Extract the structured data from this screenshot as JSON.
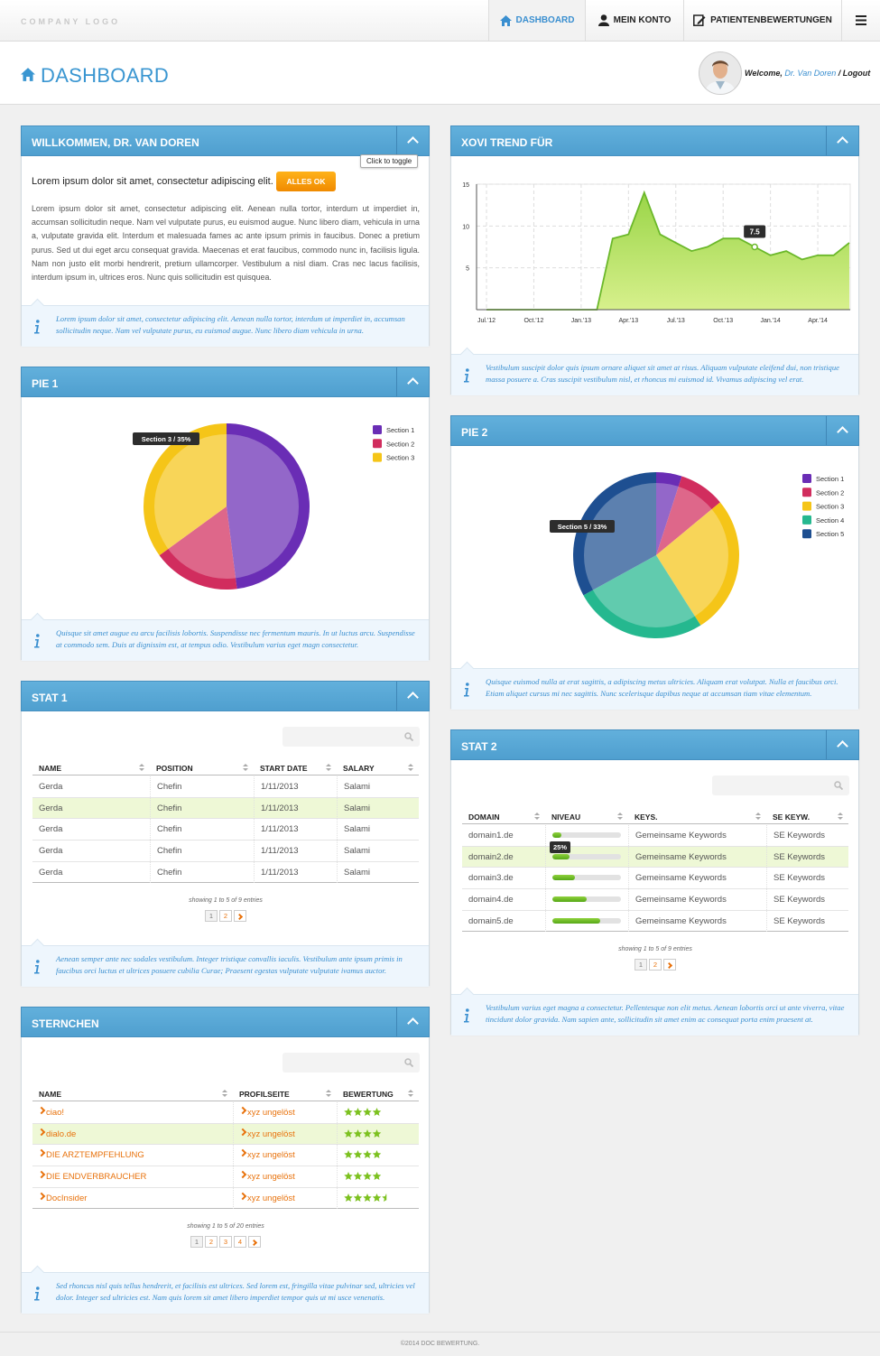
{
  "header": {
    "logo": "COMPANY LOGO",
    "nav": [
      "DASHBOARD",
      "MEIN KONTO",
      "PATIENTENBEWERTUNGEN"
    ]
  },
  "page": {
    "title": "DASHBOARD",
    "welcome": "Welcome,",
    "user": "Dr. Van Doren",
    "separator": "/",
    "logout": "Logout"
  },
  "welcome": {
    "title": "WILLKOMMEN, DR. VAN DOREN",
    "toggle_tip": "Click to toggle",
    "lead": "Lorem ipsum dolor sit amet, consectetur adipiscing elit.",
    "button": "ALLES OK",
    "body": "Lorem ipsum dolor sit amet, consectetur adipiscing elit. Aenean nulla tortor, interdum ut imperdiet in, accumsan sollicitudin neque. Nam vel vulputate purus, eu euismod augue. Nunc libero diam, vehicula in urna a, vulputate gravida elit. Interdum et malesuada fames ac ante ipsum primis in faucibus. Donec a pretium purus. Sed ut dui eget arcu consequat gravida. Maecenas et erat faucibus, commodo nunc in, facilisis ligula. Nam non justo elit morbi hendrerit, pretium ullamcorper. Vestibulum a nisl diam. Cras nec lacus facilisis, interdum ipsum in, ultrices eros. Nunc quis sollicitudin est quisquea.",
    "info": "Lorem ipsum dolor sit amet, consectetur adipiscing elit. Aenean nulla tortor, interdum ut imperdiet in, accumsan sollicitudin neque. Nam vel vulputate purus, eu euismod augue. Nunc libero diam vehicula in urna."
  },
  "xovi": {
    "title": "XOVI TREND FÜR",
    "chart": {
      "type": "area",
      "categories": [
        "Jul.'12",
        null,
        null,
        "Oct.'12",
        null,
        null,
        "Jan.'13",
        null,
        null,
        "Apr.'13",
        null,
        null,
        "Jul.'13",
        null,
        null,
        "Oct.'13",
        null,
        null,
        "Jan.'14",
        null,
        null,
        "Apr.'14",
        null,
        null
      ],
      "values": [
        0,
        0,
        0,
        0,
        0,
        0,
        0,
        0,
        8.5,
        9,
        14,
        9,
        8,
        7,
        7.5,
        8.5,
        8.5,
        7.5,
        6.5,
        7,
        6,
        6.5,
        6.5,
        8
      ],
      "ylim": [
        0,
        15
      ],
      "yticks": [
        5,
        10,
        15
      ],
      "grid": true,
      "color": "#6bb82a"
    },
    "info": "Vestibulum suscipit dolor quis ipsum ornare aliquet sit amet at risus. Aliquam vulputate eleifend dui, non tristique massa posuere a. Cras suscipit vestibulum nisl, et rhoncus mi euismod id. Vivamus adipiscing vel erat."
  },
  "pie1": {
    "title": "PIE 1",
    "chart": {
      "type": "pie",
      "categories": [
        "Section 1",
        "Section 2",
        "Section 3"
      ],
      "values": [
        48,
        17,
        35
      ],
      "colors": [
        "#6a2db5",
        "#d12d5e",
        "#f5c518"
      ],
      "tooltip": "Section 3 / 35%"
    },
    "info": "Quisque sit amet augue eu arcu facilisis lobortis. Suspendisse nec fermentum mauris. In ut luctus arcu. Suspendisse at commodo sem. Duis at dignissim est, at tempus odio. Vestibulum varius eget magn consectetur."
  },
  "pie2": {
    "title": "PIE 2",
    "chart": {
      "type": "pie",
      "categories": [
        "Section 1",
        "Section 2",
        "Section 3",
        "Section 4",
        "Section 5"
      ],
      "values": [
        5,
        9,
        27,
        26,
        33
      ],
      "colors": [
        "#6a2db5",
        "#d12d5e",
        "#f5c518",
        "#25b88f",
        "#1e4f91"
      ],
      "tooltip": "Section 5 / 33%"
    },
    "info": "Quisque euismod nulla at erat sagittis, a adipiscing metus ultricies. Aliquam erat volutpat. Nulla et faucibus orci. Etiam aliquet cursus mi nec sagittis. Nunc scelerisque dapibus neque at accumsan tiam vitae elementum."
  },
  "stat1": {
    "title": "STAT 1",
    "columns": [
      "NAME",
      "POSITION",
      "START DATE",
      "SALARY"
    ],
    "rows": [
      [
        "Gerda",
        "Chefin",
        "1/11/2013",
        "Salami"
      ],
      [
        "Gerda",
        "Chefin",
        "1/11/2013",
        "Salami"
      ],
      [
        "Gerda",
        "Chefin",
        "1/11/2013",
        "Salami"
      ],
      [
        "Gerda",
        "Chefin",
        "1/11/2013",
        "Salami"
      ],
      [
        "Gerda",
        "Chefin",
        "1/11/2013",
        "Salami"
      ]
    ],
    "pagination": {
      "summary": "showing 1 to 5 of 9 entries",
      "pages": [
        "1",
        "2"
      ]
    },
    "info": "Aenean semper ante nec sodales vestibulum. Integer tristique convallis iaculis. Vestibulum ante ipsum primis in faucibus orci luctus et ultrices posuere cubilia Curae; Praesent egestas vulputate vulputate ivamus auctor."
  },
  "stat2": {
    "title": "STAT 2",
    "columns": [
      "DOMAIN",
      "NIVEAU",
      "KEYS.",
      "SE KEYW."
    ],
    "rows": [
      [
        "domain1.de",
        13,
        "Gemeinsame Keywords",
        "SE Keywords"
      ],
      [
        "domain2.de",
        25,
        "Gemeinsame Keywords",
        "SE Keywords"
      ],
      [
        "domain3.de",
        33,
        "Gemeinsame Keywords",
        "SE Keywords"
      ],
      [
        "domain4.de",
        50,
        "Gemeinsame Keywords",
        "SE Keywords"
      ],
      [
        "domain5.de",
        70,
        "Gemeinsame Keywords",
        "SE Keywords"
      ]
    ],
    "value_labels": [
      null,
      "25%",
      null,
      null,
      null
    ],
    "pagination": {
      "summary": "showing 1 to 5 of 9 entries",
      "pages": [
        "1",
        "2"
      ]
    },
    "info": "Vestibulum varius eget magna a consectetur. Pellentesque non elit metus. Aenean lobortis orci ut ante viverra, vitae tincidunt dolor gravida. Nam sapien ante, sollicitudin sit amet enim ac consequat porta enim praesent at."
  },
  "sterne": {
    "title": "STERNCHEN",
    "columns": [
      "NAME",
      "PROFILSEITE",
      "BEWERTUNG"
    ],
    "rows": [
      [
        "ciao!",
        "xyz ungelöst",
        4
      ],
      [
        "dialo.de",
        "xyz ungelöst",
        4
      ],
      [
        "DIE ARZTEMPFEHLUNG",
        "xyz ungelöst",
        4
      ],
      [
        "DIE ENDVERBRAUCHER",
        "xyz ungelöst",
        4
      ],
      [
        "DocInsider",
        "xyz ungelöst",
        4.5
      ]
    ],
    "pagination": {
      "summary": "showing 1 to 5 of 20 entries",
      "pages": [
        "1",
        "2",
        "3",
        "4"
      ]
    },
    "info": "Sed rhoncus nisl quis tellus hendrerit, et facilisis est ultrices. Sed lorem est, fringilla vitae pulvinar sed, ultricies vel dolor. Integer sed ultricies est. Nam quis lorem sit amet libero imperdiet tempor quis ut mi usce venenatis."
  },
  "footer": {
    "text": "©2014 DOC BEWERTUNG."
  }
}
